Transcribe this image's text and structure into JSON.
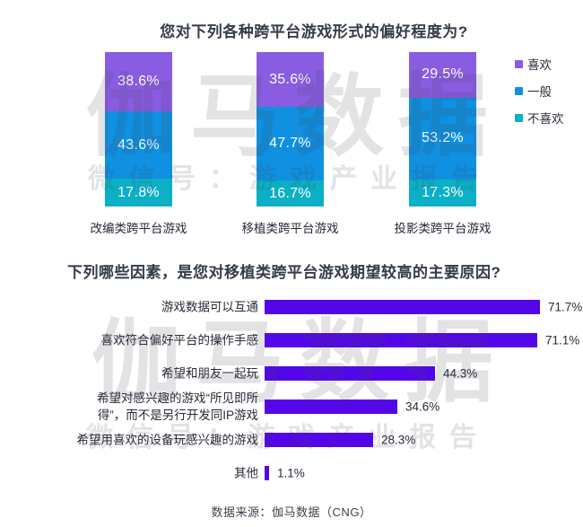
{
  "watermark": {
    "line1": "伽马数据",
    "line2": "微信号：游戏产业报告"
  },
  "footer": {
    "source": "数据来源：伽马数据（CNG）"
  },
  "accent_colors": {
    "like_purple": "#8a5ce2",
    "neutral_blue": "#0f90e0",
    "dislike_teal": "#0bb0c6",
    "reason_violet": "#5307e8"
  },
  "chart_data": [
    {
      "type": "bar",
      "stacked": true,
      "title": "您对下列各种跨平台游戏形式的偏好程度为?",
      "categories": [
        "改编类跨平台游戏",
        "移植类跨平台游戏",
        "投影类跨平台游戏"
      ],
      "series": [
        {
          "name": "喜欢",
          "color": "#8a5ce2",
          "values": [
            38.6,
            35.6,
            29.5
          ]
        },
        {
          "name": "一般",
          "color": "#0f90e0",
          "values": [
            43.6,
            47.7,
            53.2
          ]
        },
        {
          "name": "不喜欢",
          "color": "#0bb0c6",
          "values": [
            17.8,
            16.7,
            17.3
          ]
        }
      ],
      "value_labels": [
        [
          "38.6%",
          "35.6%",
          "29.5%"
        ],
        [
          "43.6%",
          "47.7%",
          "53.2%"
        ],
        [
          "17.8%",
          "16.7%",
          "17.3%"
        ]
      ],
      "ylim": [
        0,
        100
      ],
      "grid": false,
      "legend_position": "right"
    },
    {
      "type": "bar",
      "orientation": "horizontal",
      "title": "下列哪些因素，是您对移植类跨平台游戏期望较高的主要原因?",
      "categories": [
        "游戏数据可以互通",
        "喜欢符合偏好平台的操作手感",
        "希望和朋友一起玩",
        "希望对感兴趣的游戏“所见即所\n得”，而不是另行开发同IP游戏",
        "希望用喜欢的设备玩感兴趣的游戏",
        "其他"
      ],
      "values": [
        71.7,
        71.1,
        44.3,
        34.6,
        28.3,
        1.1
      ],
      "value_labels": [
        "71.7%",
        "71.1%",
        "44.3%",
        "34.6%",
        "28.3%",
        "1.1%"
      ],
      "color": "#5307e8",
      "xlim": [
        0,
        80
      ],
      "grid": false,
      "legend_position": "none"
    }
  ]
}
